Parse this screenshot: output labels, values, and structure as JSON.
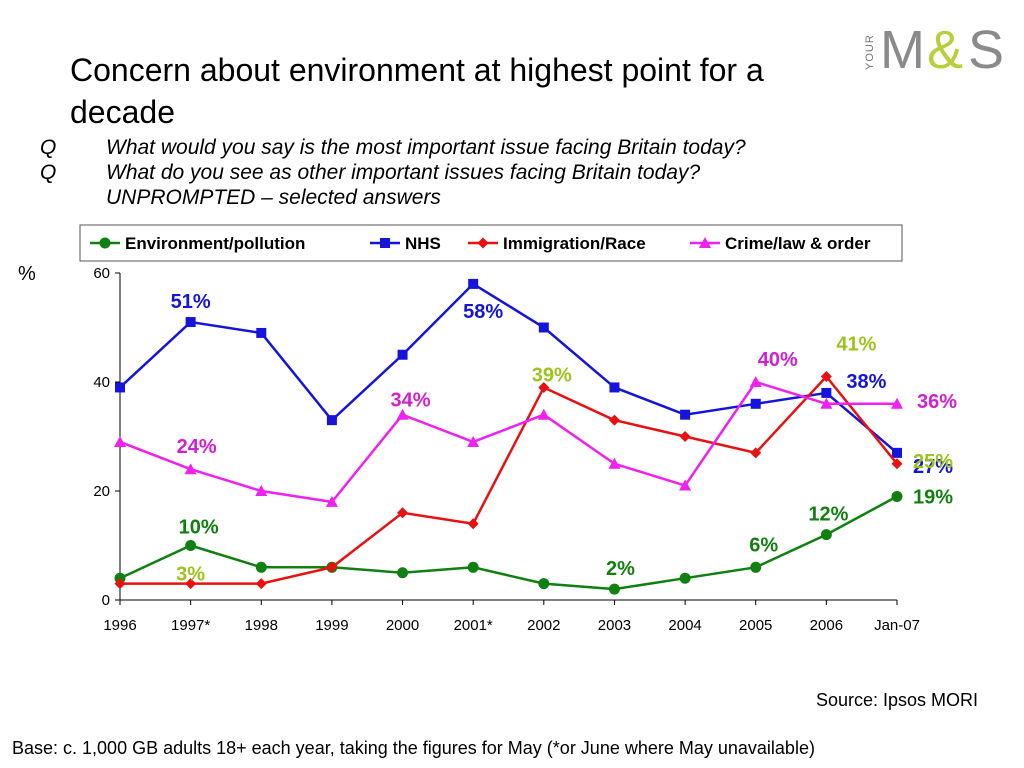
{
  "title": "Concern about environment at highest point for a decade",
  "logo": {
    "prefix": "YOUR",
    "m": "M",
    "amp": "&",
    "s": "S"
  },
  "questions": [
    {
      "marker": "Q",
      "text": "What would you say is the most important issue facing Britain today?"
    },
    {
      "marker": "Q",
      "text": "What do you see as other important issues facing Britain today?"
    },
    {
      "marker": "",
      "text": "UNPROMPTED – selected answers"
    }
  ],
  "source": "Source: Ipsos MORI",
  "base_note": "Base: c. 1,000 GB adults 18+ each year, taking the figures for May (*or June where May unavailable)",
  "chart_data": {
    "type": "line",
    "title": "",
    "xlabel": "",
    "ylabel": "%",
    "ylim": [
      0,
      60
    ],
    "yticks": [
      0,
      20,
      40,
      60
    ],
    "grid": false,
    "legend_position": "top",
    "categories": [
      "1996",
      "1997*",
      "1998",
      "1999",
      "2000",
      "2001*",
      "2002",
      "2003",
      "2004",
      "2005",
      "2006",
      "Jan-07"
    ],
    "series": [
      {
        "name": "Environment/pollution",
        "color": "#108010",
        "marker": "circle",
        "values": [
          4,
          10,
          6,
          6,
          5,
          6,
          3,
          2,
          4,
          6,
          12,
          19
        ]
      },
      {
        "name": "NHS",
        "color": "#1414dc",
        "marker": "square",
        "values": [
          39,
          51,
          49,
          33,
          45,
          58,
          50,
          39,
          34,
          36,
          38,
          27
        ]
      },
      {
        "name": "Immigration/Race",
        "color": "#e81010",
        "marker": "diamond",
        "values": [
          3,
          3,
          3,
          6,
          16,
          14,
          39,
          33,
          30,
          27,
          41,
          25
        ]
      },
      {
        "name": "Crime/law & order",
        "color": "#f020f0",
        "marker": "triangle",
        "values": [
          29,
          24,
          20,
          18,
          34,
          29,
          34,
          25,
          21,
          40,
          36,
          36
        ]
      }
    ],
    "annotations": [
      {
        "text": "51%",
        "category": "1997*",
        "value": 51,
        "color": "#1414dc"
      },
      {
        "text": "58%",
        "category": "2001*",
        "value": 58,
        "color": "#1414dc"
      },
      {
        "text": "38%",
        "category": "2006",
        "value": 38,
        "color": "#1414dc"
      },
      {
        "text": "27%",
        "category": "Jan-07",
        "value": 27,
        "color": "#1414dc"
      },
      {
        "text": "24%",
        "category": "1997*",
        "value": 24,
        "color": "#d020d0"
      },
      {
        "text": "34%",
        "category": "2000",
        "value": 34,
        "color": "#d020d0"
      },
      {
        "text": "40%",
        "category": "2005",
        "value": 40,
        "color": "#d020d0"
      },
      {
        "text": "36%",
        "category": "Jan-07",
        "value": 36,
        "color": "#d020d0"
      },
      {
        "text": "39%",
        "category": "2002",
        "value": 39,
        "color": "#9cc41c"
      },
      {
        "text": "41%",
        "category": "2006",
        "value": 41,
        "color": "#9cc41c"
      },
      {
        "text": "25%",
        "category": "Jan-07",
        "value": 25,
        "color": "#9cc41c"
      },
      {
        "text": "3%",
        "category": "1997*",
        "value": 3,
        "color": "#9cc41c"
      },
      {
        "text": "10%",
        "category": "1997*",
        "value": 10,
        "color": "#108010"
      },
      {
        "text": "2%",
        "category": "2003",
        "value": 2,
        "color": "#108010"
      },
      {
        "text": "6%",
        "category": "2005",
        "value": 6,
        "color": "#108010"
      },
      {
        "text": "12%",
        "category": "2006",
        "value": 12,
        "color": "#108010"
      },
      {
        "text": "19%",
        "category": "Jan-07",
        "value": 19,
        "color": "#108010"
      }
    ]
  }
}
